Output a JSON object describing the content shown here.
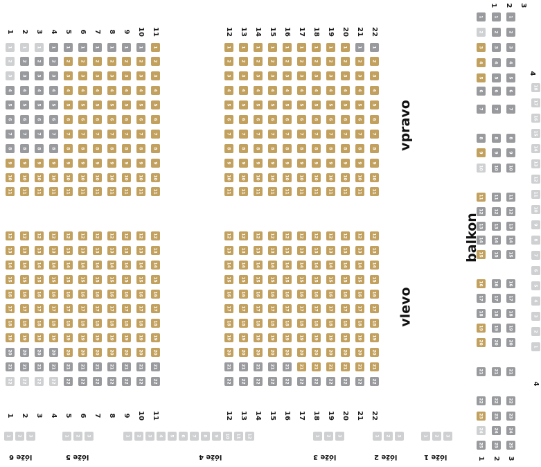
{
  "colors": {
    "gold": "#c2a05e",
    "dark": "#999a9d",
    "light": "#cfd0d2"
  },
  "labels": {
    "vpravo": "vpravo",
    "vlevo": "vlevo",
    "balkon": "balkon",
    "loze6": "lóže 6",
    "loze5": "lóže 5",
    "loze4": "lóže 4",
    "loze3": "lóže 3",
    "loze2": "lóže 2",
    "loze1": "lóže 1"
  },
  "rows_left": [
    "1",
    "2",
    "3",
    "4",
    "5",
    "6",
    "7",
    "8",
    "9",
    "10",
    "11"
  ],
  "rows_right": [
    "12",
    "13",
    "14",
    "15",
    "16",
    "17",
    "18",
    "19",
    "20",
    "21",
    "22"
  ],
  "balkon_rows": [
    "1",
    "2",
    "3"
  ],
  "balkon_row4": "4",
  "parter": {
    "row_colors": [
      "LLLDDDDDDDGGGGGGGGGGDDDDDDDDDLLLLLLLLLLLLL",
      "LDDDGGGGGGGGGGGGGGGGGGGGGGGGGGGGGGGDDDDDDD",
      "LDDDGGGGGGGGGGGGGGGGGGGGGGGGGGGGGGGDDDDDDD",
      "DDDDGGGGGGGGGGGGGGGGGGGGGGGGGGGGGGGGGGDDDD",
      "DDDDGGGGGGGGGGGGGGGGGGGGGGGGGGGGGGGGGGDDDD",
      "DDDDGGGGGGGGGGGGGGGGGGGGGGGGGGGGGGGGGGDDDD",
      "DDDDGGGGGGGGGGGGGGGGGGGGGGGGGGGGGGGGGGDDDD",
      "DDDDGGGGGGGGGGGGGGGGGGGGGGGGGGGGGGGGGGDDDD",
      "GGGGGGGGGGGGGGGGGGGGGGGGGGGGGGGGGGGGGGGGGG",
      "GGGGGGGGGGGGGGGGGGGGGGGGGGGGGGGGGGGGGGGGGG",
      "GGGGGGGGGGGGGGGGGGGGGGGGGGGGGGGGGGGGGGGGGG",
      "GGGGGGGGGGGGGGGGGGGGGGGGGGGGGGGGGGGGGGGGGG",
      "GGGGGGGGGGGGGGGGGGGGGGGGGGGGGGGGGGGGGGGGGG",
      "GGGGGGGGGGGGGGGGGGGGGGGGGGGGGGGGGGGGGGGGGG",
      "GGGGGGGGGGGGGGGGGGGGGGGGGGGGGGGGGGGGGGGGGG",
      "GGGGGGGGGGGGGGGGGGGGGGGGGGGGGGGGGGGGGGGGGG",
      "GGGGGGGGGGGGGGGGGGGGGGGGGGGGGGGGGGGGGGGGGG",
      "GGGGGGGGGGGGGGGGGGGGGGGGGGGGGGGGGGGGGGGGGG",
      "GGGGGGGGGGGGGGGGGGGGGGGGGGGGGGGGGGGGGGGGGG",
      "DDDDGGGGGGGGGGGGGGGGGGGGGGGGGGGGGGGGGGGDDD",
      "DDDDDDDDDDDDDDDDGGGGGGGGGGGDDDDDDDDDDDDDDD",
      "LLLLDDDDDDDDDDDDDDDDDDDDDDDDDDDDDDDDDDDLLLL"
    ]
  },
  "loze": [
    {
      "seats": [
        "1",
        "2",
        "3"
      ],
      "colors": "LLL"
    },
    {
      "seats": [
        "1",
        "2",
        "3"
      ],
      "colors": "LLL"
    },
    {
      "seats": [
        "1",
        "2",
        "3",
        "4",
        "5",
        "6",
        "7",
        "8",
        "9",
        "10",
        "11",
        "12"
      ],
      "colors": "LLLLLLLLLLLL"
    },
    {
      "seats": [
        "1",
        "2",
        "3"
      ],
      "colors": "LLL"
    },
    {
      "seats": [
        "1",
        "2",
        "3"
      ],
      "colors": "LLL"
    },
    {
      "seats": [
        "1",
        "2",
        "3"
      ],
      "colors": "LLL"
    }
  ],
  "balkon": {
    "row1": "DLGGGDDDGLGDDDGGDDGGDDGLD",
    "row2": "DDDDDDDDDDDDDDDDDDDDDDDDD",
    "row3": "DDDDDDDDDDDDDDDDDDDDDDDDD",
    "row4_seats": [
      "18",
      "17",
      "16",
      "15",
      "14",
      "13",
      "12",
      "11",
      "10",
      "9",
      "8",
      "7",
      "6",
      "5",
      "4",
      "3",
      "2",
      "1"
    ]
  }
}
